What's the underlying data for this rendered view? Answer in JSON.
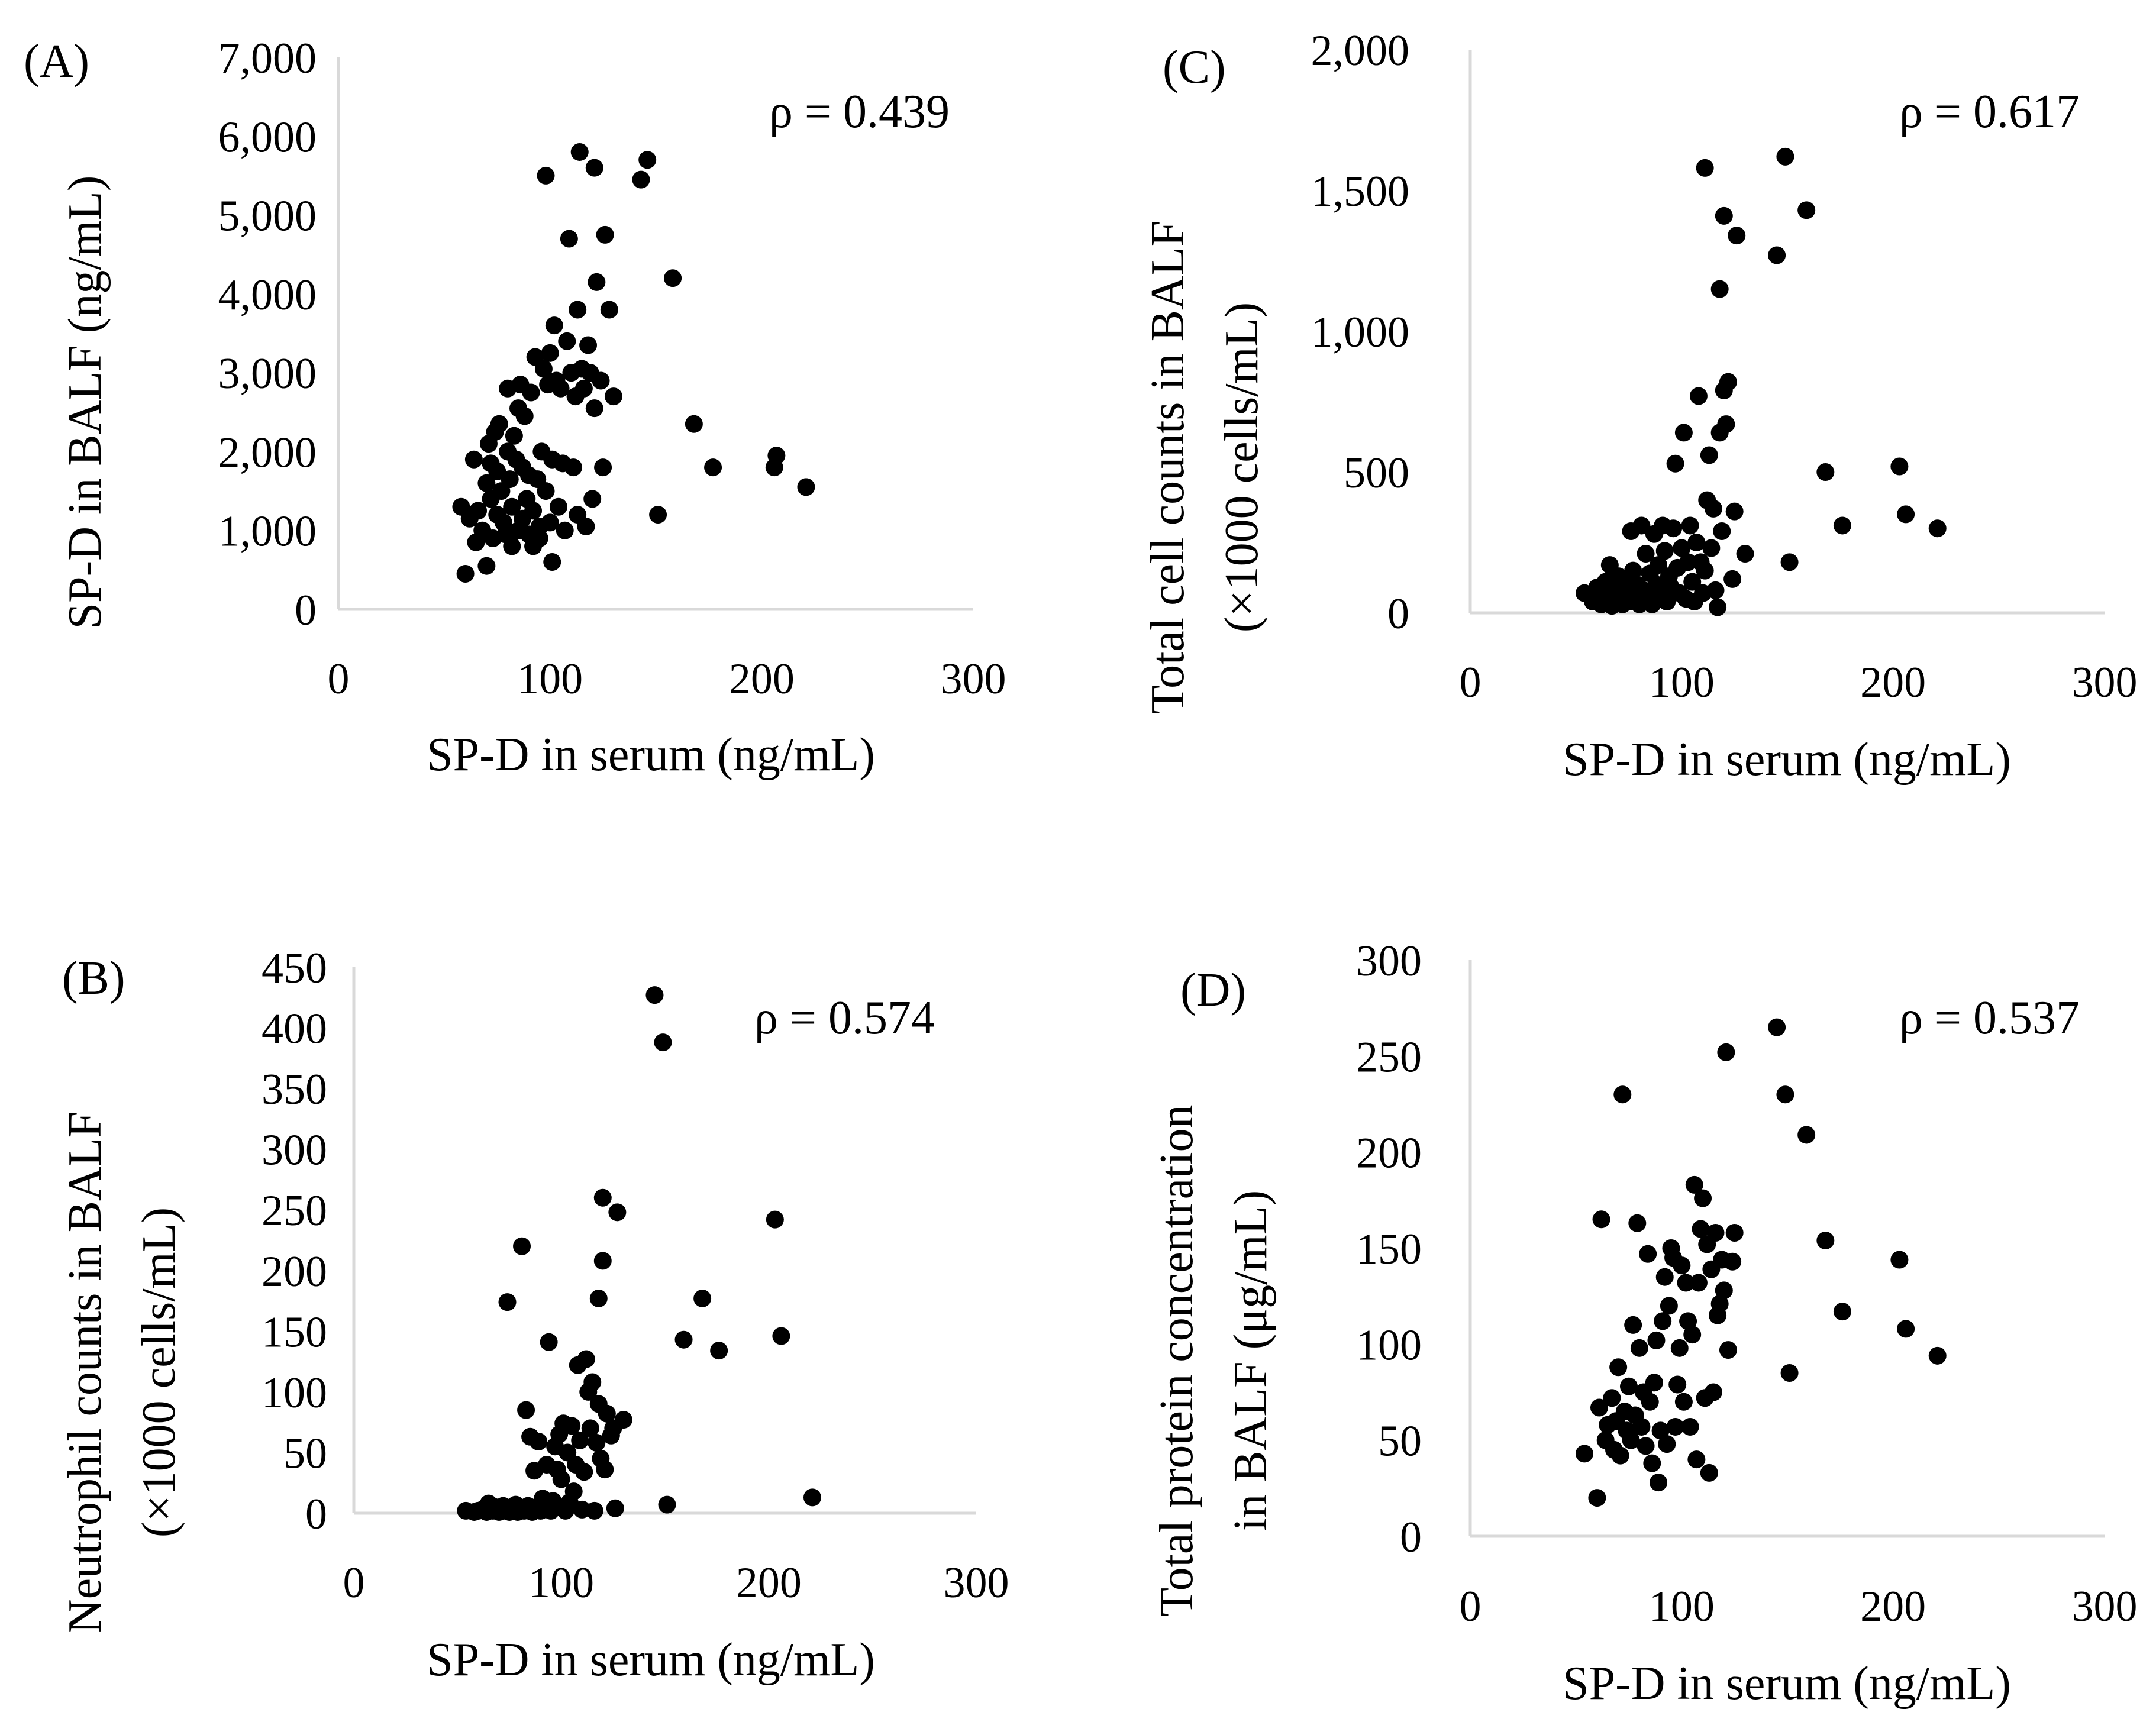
{
  "figure": {
    "background": "#ffffff",
    "axis_color": "#d9d9d9",
    "marker_color": "#000000"
  },
  "chart_data": [
    {
      "type": "scatter",
      "panel_label": "(A)",
      "annotation": "ρ = 0.439",
      "xlabel": "SP-D in serum (ng/mL)",
      "ylabel": [
        "SP-D in BALF (ng/mL)"
      ],
      "xlim": [
        0,
        300
      ],
      "ylim": [
        0,
        7000
      ],
      "xticks": [
        0,
        100,
        200,
        300
      ],
      "yticks": [
        0,
        1000,
        2000,
        3000,
        4000,
        5000,
        6000,
        7000
      ],
      "xtick_labels": [
        "0",
        "100",
        "200",
        "300"
      ],
      "ytick_labels": [
        "0",
        "1,000",
        "2,000",
        "3,000",
        "4,000",
        "5,000",
        "6,000",
        "7,000"
      ],
      "points": [
        [
          58,
          1300
        ],
        [
          60,
          450
        ],
        [
          62,
          1150
        ],
        [
          64,
          1900
        ],
        [
          65,
          850
        ],
        [
          66,
          1250
        ],
        [
          68,
          1000
        ],
        [
          70,
          1600
        ],
        [
          70,
          550
        ],
        [
          71,
          2100
        ],
        [
          72,
          1850
        ],
        [
          72,
          1400
        ],
        [
          73,
          900
        ],
        [
          74,
          2250
        ],
        [
          75,
          1750
        ],
        [
          75,
          1200
        ],
        [
          76,
          2350
        ],
        [
          77,
          1500
        ],
        [
          78,
          1100
        ],
        [
          79,
          950
        ],
        [
          80,
          2800
        ],
        [
          80,
          2000
        ],
        [
          81,
          1650
        ],
        [
          82,
          1300
        ],
        [
          82,
          800
        ],
        [
          83,
          2200
        ],
        [
          84,
          1900
        ],
        [
          85,
          2550
        ],
        [
          85,
          1000
        ],
        [
          86,
          2850
        ],
        [
          87,
          1800
        ],
        [
          87,
          1150
        ],
        [
          88,
          2450
        ],
        [
          89,
          1400
        ],
        [
          90,
          1700
        ],
        [
          90,
          950
        ],
        [
          91,
          2750
        ],
        [
          92,
          1250
        ],
        [
          92,
          800
        ],
        [
          93,
          3200
        ],
        [
          94,
          1650
        ],
        [
          95,
          1050
        ],
        [
          95,
          900
        ],
        [
          96,
          2000
        ],
        [
          97,
          3050
        ],
        [
          98,
          5500
        ],
        [
          98,
          1500
        ],
        [
          99,
          2850
        ],
        [
          100,
          3250
        ],
        [
          100,
          1100
        ],
        [
          101,
          1900
        ],
        [
          101,
          600
        ],
        [
          102,
          3600
        ],
        [
          103,
          2900
        ],
        [
          104,
          1300
        ],
        [
          105,
          2800
        ],
        [
          106,
          1850
        ],
        [
          107,
          1000
        ],
        [
          108,
          3400
        ],
        [
          109,
          4700
        ],
        [
          110,
          3000
        ],
        [
          111,
          1800
        ],
        [
          112,
          2700
        ],
        [
          113,
          3800
        ],
        [
          113,
          1200
        ],
        [
          114,
          5800
        ],
        [
          115,
          3050
        ],
        [
          116,
          2800
        ],
        [
          117,
          1050
        ],
        [
          118,
          3350
        ],
        [
          119,
          3000
        ],
        [
          120,
          1400
        ],
        [
          121,
          2550
        ],
        [
          121,
          5600
        ],
        [
          122,
          4150
        ],
        [
          124,
          2900
        ],
        [
          125,
          1800
        ],
        [
          126,
          4750
        ],
        [
          128,
          3800
        ],
        [
          130,
          2700
        ],
        [
          143,
          5450
        ],
        [
          146,
          5700
        ],
        [
          151,
          1200
        ],
        [
          158,
          4200
        ],
        [
          168,
          2350
        ],
        [
          177,
          1800
        ],
        [
          206,
          1800
        ],
        [
          207,
          1950
        ],
        [
          221,
          1550
        ]
      ]
    },
    {
      "type": "scatter",
      "panel_label": "(B)",
      "annotation": "ρ = 0.574",
      "xlabel": "SP-D in serum (ng/mL)",
      "ylabel": [
        "Neutrophil counts  in BALF",
        "(×1000 cells/mL)"
      ],
      "xlim": [
        0,
        300
      ],
      "ylim": [
        0,
        450
      ],
      "xticks": [
        0,
        100,
        200,
        300
      ],
      "yticks": [
        0,
        50,
        100,
        150,
        200,
        250,
        300,
        350,
        400,
        450
      ],
      "xtick_labels": [
        "0",
        "100",
        "200",
        "300"
      ],
      "ytick_labels": [
        "0",
        "50",
        "100",
        "150",
        "200",
        "250",
        "300",
        "350",
        "400",
        "450"
      ],
      "points": [
        [
          54,
          2
        ],
        [
          58,
          1
        ],
        [
          60,
          2
        ],
        [
          62,
          3
        ],
        [
          64,
          1
        ],
        [
          65,
          8
        ],
        [
          67,
          2
        ],
        [
          68,
          5
        ],
        [
          70,
          1
        ],
        [
          71,
          3
        ],
        [
          72,
          6
        ],
        [
          73,
          2
        ],
        [
          74,
          174
        ],
        [
          75,
          1
        ],
        [
          76,
          4
        ],
        [
          77,
          2
        ],
        [
          78,
          7
        ],
        [
          79,
          1
        ],
        [
          80,
          3
        ],
        [
          81,
          220
        ],
        [
          82,
          2
        ],
        [
          83,
          85
        ],
        [
          84,
          6
        ],
        [
          85,
          63
        ],
        [
          86,
          1
        ],
        [
          87,
          35
        ],
        [
          88,
          3
        ],
        [
          89,
          59
        ],
        [
          90,
          2
        ],
        [
          91,
          12
        ],
        [
          92,
          5
        ],
        [
          93,
          40
        ],
        [
          94,
          141
        ],
        [
          95,
          2
        ],
        [
          96,
          10
        ],
        [
          97,
          55
        ],
        [
          98,
          36
        ],
        [
          99,
          65
        ],
        [
          100,
          28
        ],
        [
          101,
          74
        ],
        [
          102,
          2
        ],
        [
          103,
          50
        ],
        [
          104,
          9
        ],
        [
          105,
          72
        ],
        [
          106,
          18
        ],
        [
          107,
          40
        ],
        [
          108,
          122
        ],
        [
          109,
          60
        ],
        [
          110,
          3
        ],
        [
          111,
          34
        ],
        [
          112,
          127
        ],
        [
          113,
          100
        ],
        [
          114,
          70
        ],
        [
          115,
          108
        ],
        [
          116,
          2
        ],
        [
          117,
          58
        ],
        [
          118,
          90
        ],
        [
          118,
          177
        ],
        [
          119,
          45
        ],
        [
          120,
          208
        ],
        [
          120,
          260
        ],
        [
          121,
          36
        ],
        [
          122,
          82
        ],
        [
          124,
          64
        ],
        [
          125,
          70
        ],
        [
          126,
          4
        ],
        [
          127,
          248
        ],
        [
          130,
          77
        ],
        [
          145,
          427
        ],
        [
          149,
          388
        ],
        [
          151,
          7
        ],
        [
          159,
          143
        ],
        [
          168,
          177
        ],
        [
          176,
          134
        ],
        [
          203,
          242
        ],
        [
          206,
          146
        ],
        [
          221,
          13
        ]
      ]
    },
    {
      "type": "scatter",
      "panel_label": "(C)",
      "annotation": "ρ = 0.617",
      "xlabel": "SP-D in serum (ng/mL)",
      "ylabel": [
        "Total cell counts  in BALF",
        "(×1000 cells/mL)"
      ],
      "xlim": [
        0,
        300
      ],
      "ylim": [
        0,
        2000
      ],
      "xticks": [
        0,
        100,
        200,
        300
      ],
      "yticks": [
        0,
        500,
        1000,
        1500,
        2000
      ],
      "xtick_labels": [
        "0",
        "100",
        "200",
        "300"
      ],
      "ytick_labels": [
        "0",
        "500",
        "1,000",
        "1,500",
        "2,000"
      ],
      "points": [
        [
          54,
          70
        ],
        [
          58,
          40
        ],
        [
          60,
          90
        ],
        [
          62,
          30
        ],
        [
          64,
          110
        ],
        [
          65,
          60
        ],
        [
          66,
          170
        ],
        [
          67,
          25
        ],
        [
          68,
          80
        ],
        [
          70,
          130
        ],
        [
          71,
          50
        ],
        [
          72,
          30
        ],
        [
          73,
          100
        ],
        [
          74,
          70
        ],
        [
          75,
          40
        ],
        [
          76,
          290
        ],
        [
          77,
          150
        ],
        [
          78,
          60
        ],
        [
          79,
          100
        ],
        [
          80,
          30
        ],
        [
          81,
          310
        ],
        [
          82,
          80
        ],
        [
          83,
          210
        ],
        [
          84,
          50
        ],
        [
          85,
          140
        ],
        [
          86,
          30
        ],
        [
          87,
          280
        ],
        [
          88,
          100
        ],
        [
          89,
          170
        ],
        [
          90,
          60
        ],
        [
          91,
          310
        ],
        [
          92,
          220
        ],
        [
          93,
          40
        ],
        [
          94,
          130
        ],
        [
          95,
          90
        ],
        [
          96,
          300
        ],
        [
          97,
          530
        ],
        [
          98,
          160
        ],
        [
          99,
          70
        ],
        [
          100,
          230
        ],
        [
          101,
          640
        ],
        [
          102,
          50
        ],
        [
          103,
          180
        ],
        [
          104,
          310
        ],
        [
          105,
          110
        ],
        [
          106,
          40
        ],
        [
          107,
          250
        ],
        [
          108,
          770
        ],
        [
          109,
          180
        ],
        [
          110,
          70
        ],
        [
          111,
          1580
        ],
        [
          111,
          150
        ],
        [
          112,
          400
        ],
        [
          113,
          560
        ],
        [
          114,
          230
        ],
        [
          115,
          370
        ],
        [
          116,
          80
        ],
        [
          117,
          20
        ],
        [
          118,
          1150
        ],
        [
          118,
          640
        ],
        [
          119,
          290
        ],
        [
          120,
          1410
        ],
        [
          120,
          790
        ],
        [
          121,
          670
        ],
        [
          122,
          820
        ],
        [
          124,
          120
        ],
        [
          125,
          360
        ],
        [
          126,
          1340
        ],
        [
          130,
          210
        ],
        [
          145,
          1270
        ],
        [
          149,
          1620
        ],
        [
          151,
          180
        ],
        [
          159,
          1430
        ],
        [
          168,
          500
        ],
        [
          176,
          310
        ],
        [
          203,
          520
        ],
        [
          206,
          350
        ],
        [
          221,
          300
        ]
      ]
    },
    {
      "type": "scatter",
      "panel_label": "(D)",
      "annotation": "ρ = 0.537",
      "xlabel": "SP-D in serum (ng/mL)",
      "ylabel": [
        "Total protein concentration",
        "in BALF (μg/mL)"
      ],
      "xlim": [
        0,
        300
      ],
      "ylim": [
        0,
        300
      ],
      "xticks": [
        0,
        100,
        200,
        300
      ],
      "yticks": [
        0,
        50,
        100,
        150,
        200,
        250,
        300
      ],
      "xtick_labels": [
        "0",
        "100",
        "200",
        "300"
      ],
      "ytick_labels": [
        "0",
        "50",
        "100",
        "150",
        "200",
        "250",
        "300"
      ],
      "points": [
        [
          54,
          43
        ],
        [
          60,
          20
        ],
        [
          61,
          67
        ],
        [
          62,
          165
        ],
        [
          64,
          50
        ],
        [
          65,
          58
        ],
        [
          67,
          72
        ],
        [
          68,
          45
        ],
        [
          69,
          60
        ],
        [
          70,
          88
        ],
        [
          71,
          42
        ],
        [
          72,
          230
        ],
        [
          73,
          65
        ],
        [
          74,
          55
        ],
        [
          75,
          78
        ],
        [
          76,
          50
        ],
        [
          77,
          110
        ],
        [
          78,
          63
        ],
        [
          79,
          163
        ],
        [
          80,
          98
        ],
        [
          81,
          57
        ],
        [
          82,
          75
        ],
        [
          83,
          47
        ],
        [
          84,
          147
        ],
        [
          85,
          70
        ],
        [
          86,
          38
        ],
        [
          87,
          80
        ],
        [
          88,
          102
        ],
        [
          89,
          28
        ],
        [
          90,
          55
        ],
        [
          91,
          112
        ],
        [
          92,
          135
        ],
        [
          93,
          48
        ],
        [
          94,
          120
        ],
        [
          95,
          150
        ],
        [
          96,
          145
        ],
        [
          97,
          57
        ],
        [
          98,
          79
        ],
        [
          99,
          98
        ],
        [
          100,
          141
        ],
        [
          101,
          70
        ],
        [
          102,
          132
        ],
        [
          103,
          112
        ],
        [
          104,
          57
        ],
        [
          105,
          105
        ],
        [
          106,
          183
        ],
        [
          107,
          40
        ],
        [
          108,
          132
        ],
        [
          109,
          160
        ],
        [
          110,
          176
        ],
        [
          111,
          72
        ],
        [
          112,
          152
        ],
        [
          113,
          33
        ],
        [
          114,
          139
        ],
        [
          115,
          75
        ],
        [
          116,
          158
        ],
        [
          117,
          115
        ],
        [
          118,
          121
        ],
        [
          119,
          144
        ],
        [
          120,
          128
        ],
        [
          121,
          252
        ],
        [
          122,
          97
        ],
        [
          124,
          143
        ],
        [
          125,
          158
        ],
        [
          145,
          265
        ],
        [
          149,
          230
        ],
        [
          151,
          85
        ],
        [
          159,
          209
        ],
        [
          168,
          154
        ],
        [
          176,
          117
        ],
        [
          203,
          144
        ],
        [
          206,
          108
        ],
        [
          221,
          94
        ]
      ]
    }
  ]
}
